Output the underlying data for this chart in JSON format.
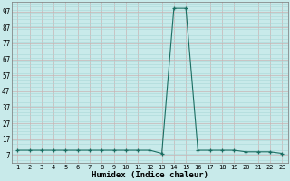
{
  "x": [
    1,
    2,
    3,
    4,
    5,
    6,
    7,
    8,
    9,
    10,
    11,
    12,
    13,
    14,
    15,
    16,
    17,
    18,
    19,
    20,
    21,
    22,
    23
  ],
  "y": [
    10,
    10,
    10,
    10,
    10,
    10,
    10,
    10,
    10,
    10,
    10,
    10,
    8,
    99,
    99,
    10,
    10,
    10,
    10,
    9,
    9,
    9,
    8
  ],
  "yticks": [
    7,
    17,
    27,
    37,
    47,
    57,
    67,
    77,
    87,
    97
  ],
  "xtick_labels": [
    "1",
    "2",
    "3",
    "4",
    "5",
    "6",
    "7",
    "8",
    "9",
    "10",
    "11",
    "12",
    "13",
    "14",
    "15",
    "16",
    "17",
    "18",
    "19",
    "20",
    "21",
    "22",
    "23"
  ],
  "xlabel": "Humidex (Indice chaleur)",
  "ylim": [
    2,
    103
  ],
  "xlim": [
    0.5,
    23.5
  ],
  "line_color": "#1a6e62",
  "marker": "+",
  "bg_color": "#c8eaea",
  "minor_grid_color": "#a8d8d8",
  "major_grid_color": "#c8b4b4",
  "title": ""
}
